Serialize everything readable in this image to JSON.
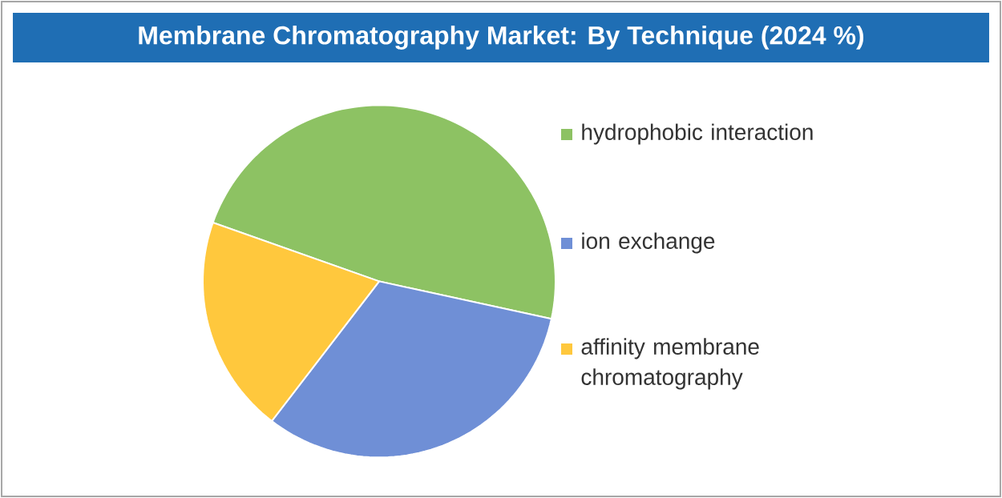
{
  "chart_data": {
    "type": "pie",
    "title": "Membrane Chromatography Market: By Technique (2024 %)",
    "categories": [
      "hydrophobic interaction",
      "ion exchange",
      "affinity membrane chromatography"
    ],
    "values": [
      48,
      32,
      20
    ],
    "colors": [
      "#8dc263",
      "#6f8fd6",
      "#ffc83d"
    ],
    "legend": "right"
  }
}
